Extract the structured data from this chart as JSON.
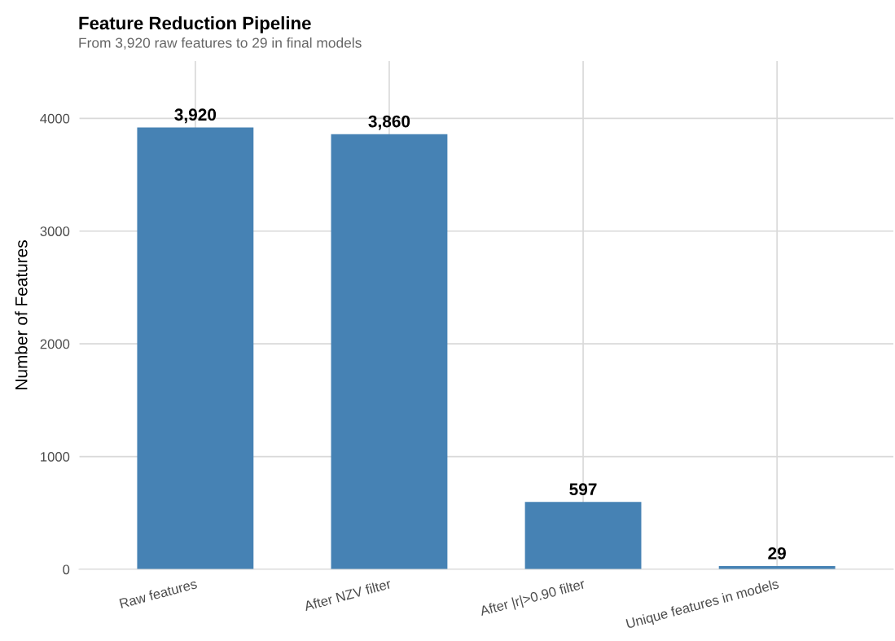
{
  "chart_data": {
    "type": "bar",
    "title": "Feature Reduction Pipeline",
    "subtitle": "From 3,920 raw features to 29 in final models",
    "ylabel": "Number of Features",
    "categories": [
      "Raw features",
      "After NZV filter",
      "After |r|>0.90 filter",
      "Unique features in models"
    ],
    "values": [
      3920,
      3860,
      597,
      29
    ],
    "value_labels": [
      "3,920",
      "3,860",
      "597",
      "29"
    ],
    "color": "#4682b4",
    "ylim": [
      0,
      4508
    ],
    "yticks": [
      0,
      1000,
      2000,
      3000,
      4000
    ],
    "grid": true
  }
}
